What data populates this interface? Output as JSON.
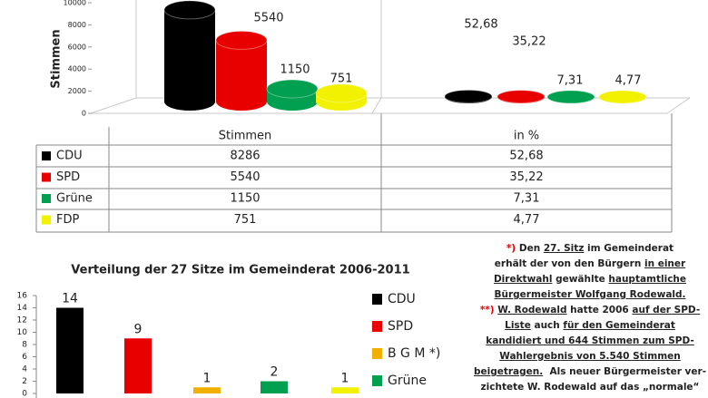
{
  "chart_data": [
    {
      "type": "cylinder-bar",
      "y_label": "Stimmen",
      "categories": [
        "Stimmen",
        "in %"
      ],
      "series": [
        {
          "name": "CDU",
          "color": "#000000",
          "values": [
            8286,
            52.68
          ],
          "value_labels": [
            null,
            "52,68"
          ]
        },
        {
          "name": "SPD",
          "color": "#e80000",
          "values": [
            5540,
            35.22
          ],
          "value_labels": [
            "5540",
            "35,22"
          ]
        },
        {
          "name": "Grüne",
          "color": "#00a050",
          "values": [
            1150,
            7.31
          ],
          "value_labels": [
            "1150",
            "7,31"
          ]
        },
        {
          "name": "FDP",
          "color": "#f2f200",
          "values": [
            751,
            4.77
          ],
          "value_labels": [
            "751",
            "4,77"
          ]
        }
      ],
      "ylim": [
        0,
        10000
      ],
      "yticks": [
        0,
        2000,
        4000,
        6000,
        8000,
        10000
      ],
      "data_table": true
    },
    {
      "type": "bar",
      "title": "Verteilung der 27 Sitze im Gemeinderat 2006-2011",
      "categories": [
        null,
        null,
        null,
        null,
        null
      ],
      "values": [
        14,
        9,
        1,
        2,
        1
      ],
      "colors": [
        "#000000",
        "#e80000",
        "#f0b000",
        "#00a050",
        "#f2f200"
      ],
      "ylim": [
        0,
        16
      ],
      "yticks": [
        0,
        2,
        4,
        6,
        8,
        10,
        12,
        14,
        16
      ],
      "legend": [
        {
          "name": "CDU",
          "color": "#000000"
        },
        {
          "name": "SPD",
          "color": "#e80000"
        },
        {
          "name": "B G M *)",
          "color": "#f0b000"
        },
        {
          "name": "Grüne",
          "color": "#00a050"
        }
      ]
    }
  ],
  "note": {
    "lines": [
      [
        {
          "t": "*) ",
          "style": "red"
        },
        {
          "t": "Den "
        },
        {
          "t": "27. Sitz",
          "style": "underline"
        },
        {
          "t": " im Gemeinderat"
        }
      ],
      [
        {
          "t": "erhält der von den Bürgern "
        },
        {
          "t": "in einer",
          "style": "underline"
        }
      ],
      [
        {
          "t": "Direktwahl",
          "style": "underline"
        },
        {
          "t": " gewählte "
        },
        {
          "t": "hauptamtliche",
          "style": "underline"
        }
      ],
      [
        {
          "t": "Bürgermeister Wolfgang Rodewald.",
          "style": "underline"
        }
      ],
      [
        {
          "t": "**) ",
          "style": "red"
        },
        {
          "t": "W. Rodewald",
          "style": "underline"
        },
        {
          "t": " hatte 2006 "
        },
        {
          "t": "auf der SPD-",
          "style": "underline"
        }
      ],
      [
        {
          "t": "Liste",
          "style": "underline"
        },
        {
          "t": " auch "
        },
        {
          "t": "für den Gemeinderat",
          "style": "underline"
        }
      ],
      [
        {
          "t": "kandidiert und 644 Stimmen zum SPD-",
          "style": "underline"
        }
      ],
      [
        {
          "t": "Wahlergebnis von 5.540 Stimmen",
          "style": "underline"
        }
      ],
      [
        {
          "t": "beigetragen.",
          "style": "underline"
        },
        {
          "t": "  Als neuer Bürgermeister ver-"
        }
      ],
      [
        {
          "t": "zichtete W. Rodewald auf das „normale“"
        }
      ]
    ]
  }
}
